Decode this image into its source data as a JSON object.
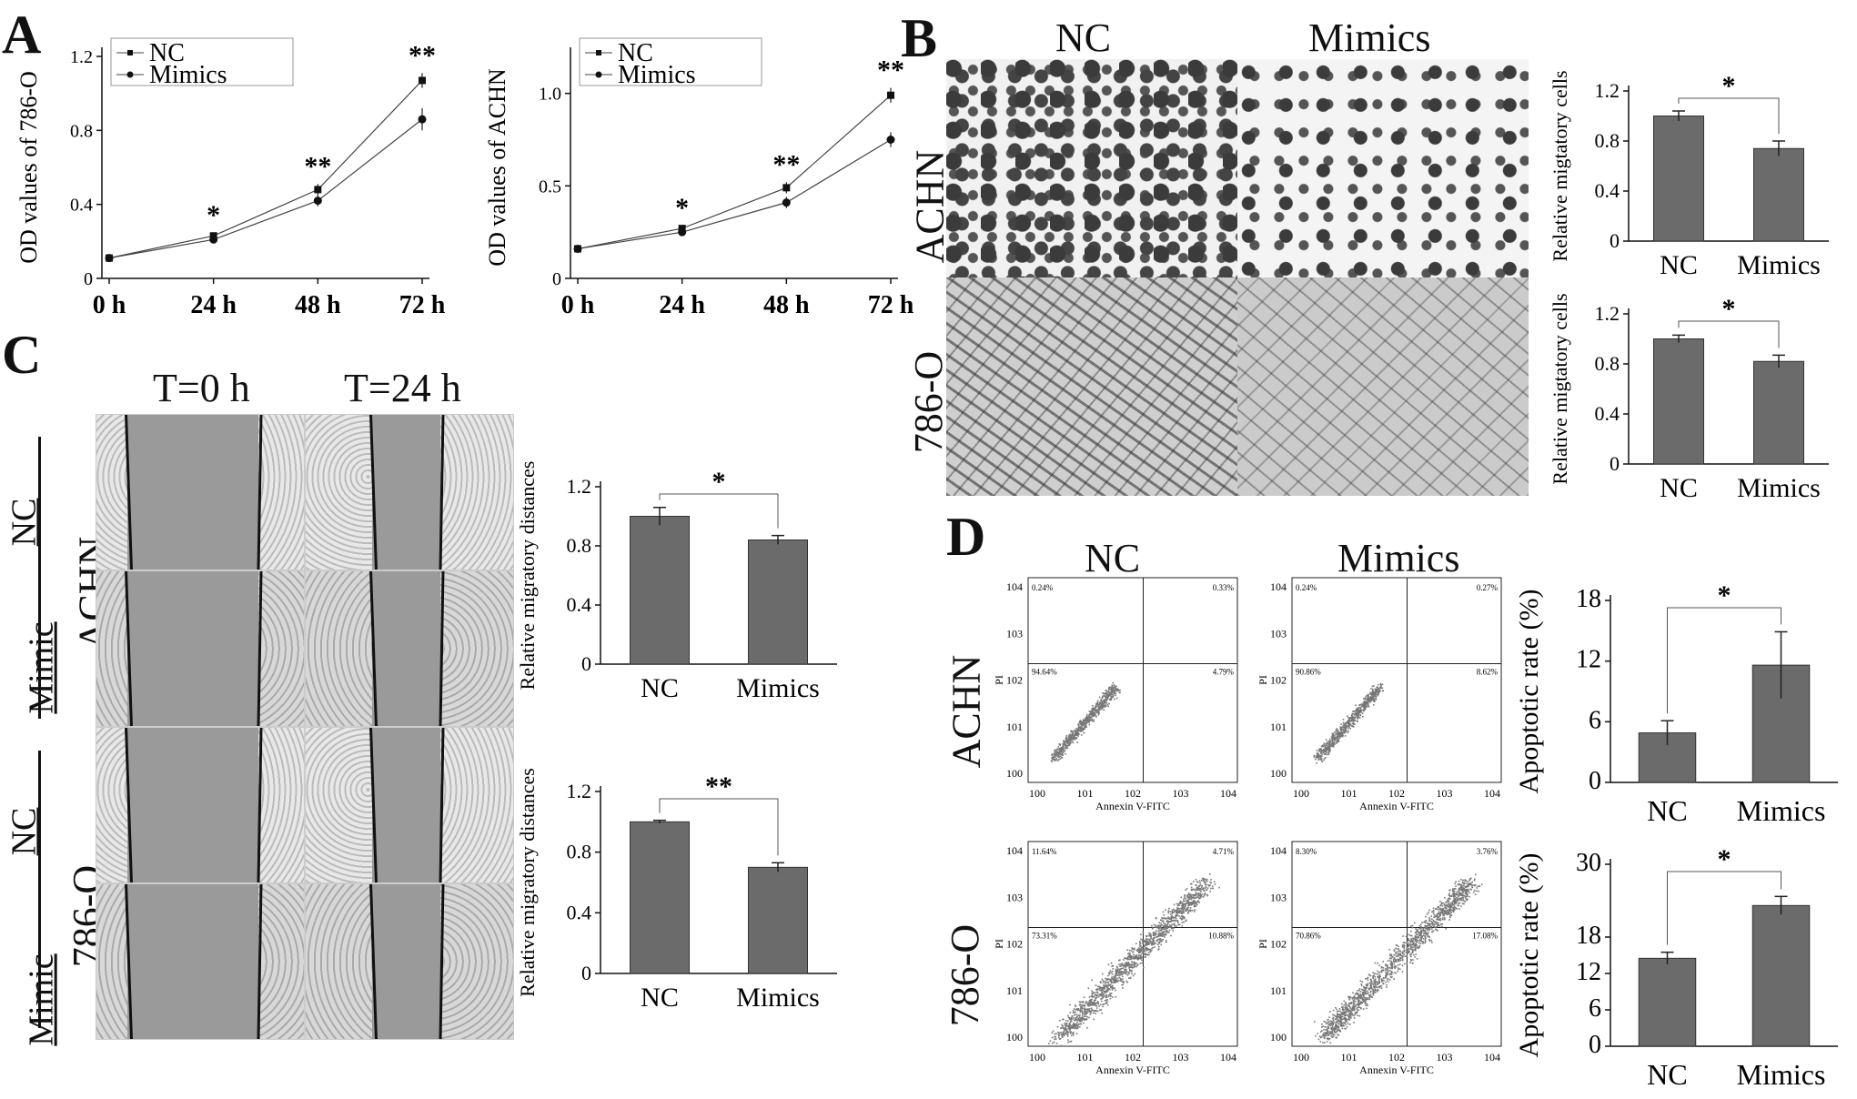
{
  "panels": {
    "A": {
      "letter": "A",
      "charts": [
        {
          "chart_data": {
            "type": "line",
            "ylabel": "OD values of 786-O",
            "categories": [
              "0 h",
              "24 h",
              "48 h",
              "72 h"
            ],
            "yticks": [
              "0",
              "0.4",
              "0.8",
              "1.2"
            ],
            "ylim": [
              0,
              1.2
            ],
            "series": [
              {
                "name": "NC",
                "values": [
                  0.11,
                  0.23,
                  0.48,
                  1.07
                ],
                "err": [
                  0.005,
                  0.015,
                  0.03,
                  0.04
                ]
              },
              {
                "name": "Mimics",
                "values": [
                  0.11,
                  0.21,
                  0.42,
                  0.86
                ],
                "err": [
                  0.005,
                  0.015,
                  0.03,
                  0.06
                ]
              }
            ],
            "significance": [
              "",
              "*",
              "**",
              "**"
            ],
            "legend": "top-left"
          }
        },
        {
          "chart_data": {
            "type": "line",
            "ylabel": "OD values of ACHN",
            "categories": [
              "0 h",
              "24 h",
              "48 h",
              "72 h"
            ],
            "yticks": [
              "0",
              "0.5",
              "1.0"
            ],
            "ylim": [
              0,
              1.2
            ],
            "series": [
              {
                "name": "NC",
                "values": [
                  0.16,
                  0.27,
                  0.49,
                  0.99
                ],
                "err": [
                  0.005,
                  0.015,
                  0.03,
                  0.04
                ]
              },
              {
                "name": "Mimics",
                "values": [
                  0.16,
                  0.25,
                  0.41,
                  0.75
                ],
                "err": [
                  0.005,
                  0.015,
                  0.03,
                  0.04
                ]
              }
            ],
            "significance": [
              "",
              "*",
              "**",
              "**"
            ],
            "legend": "top-left"
          }
        }
      ]
    },
    "B": {
      "letter": "B",
      "col_labels": [
        "NC",
        "Mimics"
      ],
      "row_labels": [
        "ACHN",
        "786-O"
      ],
      "charts": [
        {
          "chart_data": {
            "type": "bar",
            "ylabel": "Relative migtatory cells",
            "categories": [
              "NC",
              "Mimics"
            ],
            "values": [
              1.0,
              0.74
            ],
            "err": [
              0.04,
              0.06
            ],
            "yticks": [
              "0",
              "0.4",
              "0.8",
              "1.2"
            ],
            "ylim": [
              0,
              1.2
            ],
            "significance": "*"
          }
        },
        {
          "chart_data": {
            "type": "bar",
            "ylabel": "Relative migtatory cells",
            "categories": [
              "NC",
              "Mimics"
            ],
            "values": [
              1.0,
              0.82
            ],
            "err": [
              0.03,
              0.05
            ],
            "yticks": [
              "0",
              "0.4",
              "0.8",
              "1.2"
            ],
            "ylim": [
              0,
              1.2
            ],
            "significance": "*"
          }
        }
      ]
    },
    "C": {
      "letter": "C",
      "col_labels": [
        "T=0 h",
        "T=24 h"
      ],
      "row_labels": [
        "NC",
        "Mimic",
        "NC",
        "Mimic"
      ],
      "group_labels": [
        "ACHN",
        "786-O"
      ],
      "charts": [
        {
          "chart_data": {
            "type": "bar",
            "ylabel": "Relative migratory distances",
            "categories": [
              "NC",
              "Mimics"
            ],
            "values": [
              1.0,
              0.84
            ],
            "err": [
              0.06,
              0.03
            ],
            "yticks": [
              "0",
              "0.4",
              "0.8",
              "1.2"
            ],
            "ylim": [
              0,
              1.2
            ],
            "significance": "*"
          }
        },
        {
          "chart_data": {
            "type": "bar",
            "ylabel": "Relative migratory distances",
            "categories": [
              "NC",
              "Mimics"
            ],
            "values": [
              1.0,
              0.7
            ],
            "err": [
              0.01,
              0.03
            ],
            "yticks": [
              "0",
              "0.4",
              "0.8",
              "1.2"
            ],
            "ylim": [
              0,
              1.2
            ],
            "significance": "**"
          }
        }
      ]
    },
    "D": {
      "letter": "D",
      "col_labels": [
        "NC",
        "Mimics"
      ],
      "row_labels": [
        "ACHN",
        "786-O"
      ],
      "flow_plots": [
        {
          "xlabel": "Annexin V-FITC",
          "ylabel": "PI",
          "quadrants": [
            "0.24%",
            "0.33%",
            "94.64%",
            "4.79%"
          ]
        },
        {
          "xlabel": "Annexin V-FITC",
          "ylabel": "PI",
          "quadrants": [
            "0.24%",
            "0.27%",
            "90.86%",
            "8.62%"
          ]
        },
        {
          "xlabel": "Annexin V-FITC",
          "ylabel": "PI",
          "quadrants": [
            "11.64%",
            "4.71%",
            "73.31%",
            "10.88%"
          ]
        },
        {
          "xlabel": "Annexin V-FITC",
          "ylabel": "PI",
          "quadrants": [
            "8.30%",
            "3.76%",
            "70.86%",
            "17.08%"
          ]
        }
      ],
      "flow_ticks": [
        "100",
        "101",
        "102",
        "103",
        "104"
      ],
      "charts": [
        {
          "chart_data": {
            "type": "bar",
            "ylabel": "Apoptotic rate (%)",
            "categories": [
              "NC",
              "Mimics"
            ],
            "values": [
              4.9,
              11.6
            ],
            "err": [
              1.2,
              3.3
            ],
            "yticks": [
              "0",
              "6",
              "12",
              "18"
            ],
            "ylim": [
              0,
              18
            ],
            "significance": "*"
          }
        },
        {
          "chart_data": {
            "type": "bar",
            "ylabel": "Apoptotic rate (%)",
            "categories": [
              "NC",
              "Mimics"
            ],
            "values": [
              14.5,
              23.2
            ],
            "err": [
              1.0,
              1.5
            ],
            "yticks": [
              "0",
              "6",
              "12",
              "18",
              "30"
            ],
            "ytick_values": [
              0,
              6,
              12,
              18,
              30
            ],
            "ylim": [
              0,
              30
            ],
            "significance": "*"
          }
        }
      ]
    }
  },
  "colors": {
    "bar": "#6b6b6b",
    "line": "#444444",
    "photo_light": "#cfcfcf",
    "photo_dark": "#555555",
    "flow_dot": "#777777"
  }
}
